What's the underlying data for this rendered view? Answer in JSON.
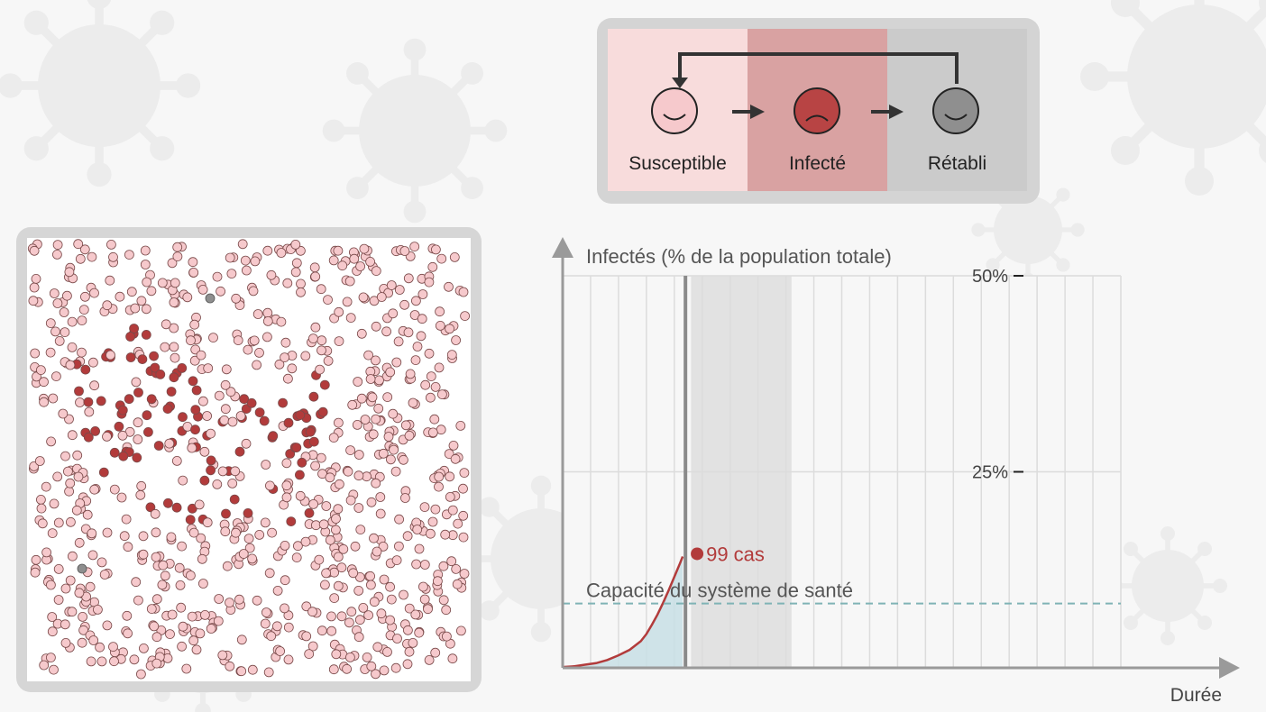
{
  "legend": {
    "states": [
      {
        "label": "Susceptible",
        "color": "#f8dcdc",
        "face_color": "#f6c9cc"
      },
      {
        "label": "Infecté",
        "color": "#d9a2a2",
        "face_color": "#b84444"
      },
      {
        "label": "Rétabli",
        "color": "#cbcbcb",
        "face_color": "#8f8f8f"
      }
    ]
  },
  "simulation": {
    "colors": {
      "susceptible": "#f6c9cc",
      "infected": "#b23b3b",
      "recovered": "#8e8e8e"
    }
  },
  "chart_data": {
    "type": "area",
    "ylabel": "Infectés (% de la population totale)",
    "xlabel": "Durée",
    "y_ticks": [
      {
        "value": 50,
        "label": "50%"
      },
      {
        "value": 25,
        "label": "25%"
      }
    ],
    "ylim": [
      0,
      50
    ],
    "xlim": [
      0,
      100
    ],
    "grid": true,
    "series": [
      {
        "color": "#b23b3b",
        "x": [
          0,
          2,
          4,
          6,
          8,
          10,
          12,
          14,
          15,
          16,
          17,
          18,
          19,
          20,
          21,
          21.5
        ],
        "y": [
          0.1,
          0.2,
          0.4,
          0.6,
          1.0,
          1.6,
          2.3,
          3.4,
          4.3,
          5.5,
          6.8,
          8.3,
          9.9,
          11.6,
          13.3,
          14.2
        ]
      }
    ],
    "capacity": {
      "label": "Capacité du système de santé",
      "value": 8.2
    },
    "current": {
      "label": "99 cas",
      "x": 21.5,
      "value": 14.2
    },
    "current_time_x": 22,
    "shaded_range": [
      23,
      41
    ]
  }
}
